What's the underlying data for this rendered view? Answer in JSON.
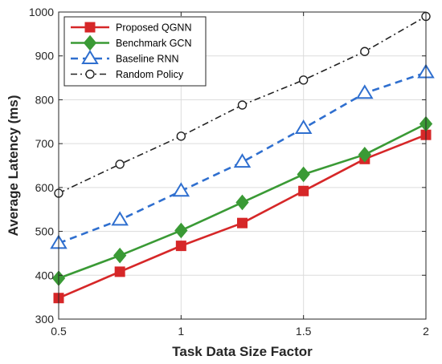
{
  "chart_data": {
    "type": "line",
    "xlabel": "Task Data Size Factor",
    "ylabel": "Average Latency (ms)",
    "xlim": [
      0.5,
      2
    ],
    "ylim": [
      300,
      1000
    ],
    "x_ticks": [
      0.5,
      1,
      1.5,
      2
    ],
    "x_tick_labels": [
      "0.5",
      "1",
      "1.5",
      "2"
    ],
    "y_ticks": [
      300,
      400,
      500,
      600,
      700,
      800,
      900,
      1000
    ],
    "y_tick_labels": [
      "300",
      "400",
      "500",
      "600",
      "700",
      "800",
      "900",
      "1000"
    ],
    "grid": true,
    "legend_position": "top-left",
    "x": [
      0.5,
      0.75,
      1.0,
      1.25,
      1.5,
      1.75,
      2.0
    ],
    "series": [
      {
        "name": "Proposed QGNN",
        "values": [
          348,
          408,
          467,
          519,
          592,
          665,
          720
        ],
        "color": "#d62728",
        "marker": "square",
        "dash": "solid"
      },
      {
        "name": "Benchmark GCN",
        "values": [
          393,
          445,
          502,
          566,
          630,
          675,
          745
        ],
        "color": "#3a9a35",
        "marker": "diamond",
        "dash": "solid"
      },
      {
        "name": "Baseline RNN",
        "values": [
          473,
          526,
          592,
          658,
          735,
          815,
          862
        ],
        "color": "#2f6fcf",
        "marker": "triangle",
        "dash": "dashed"
      },
      {
        "name": "Random Policy",
        "values": [
          587,
          653,
          717,
          788,
          845,
          910,
          990
        ],
        "color": "#222222",
        "marker": "circle",
        "dash": "dashdot"
      }
    ]
  }
}
